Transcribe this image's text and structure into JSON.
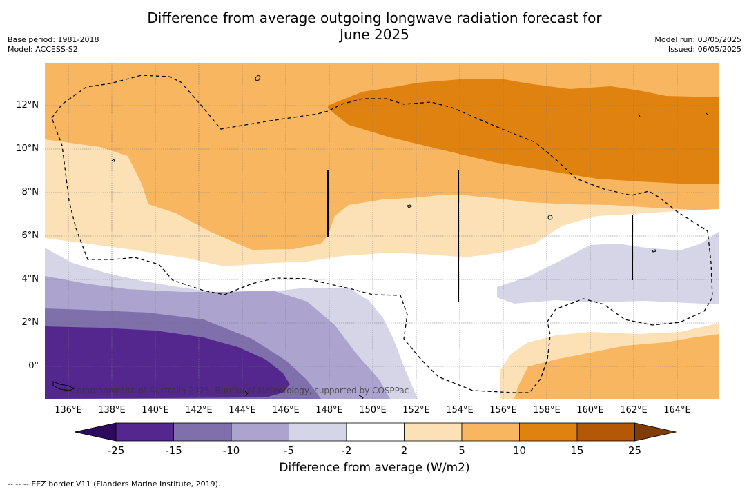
{
  "title_line1": "Difference from average outgoing longwave radiation forecast for",
  "title_line2": "June 2025",
  "base_period": "Base period: 1981-2018",
  "model": "Model: ACCESS-S2",
  "model_run": "Model run: 03/05/2025",
  "issued": "Issued: 06/05/2025",
  "copyright": "© Commonwealth of Australia 2025, Bureau of Meteorology, supported by COSPPac",
  "lat_labels": [
    "12°N",
    "10°N",
    "8°N",
    "6°N",
    "4°N",
    "2°N",
    "0°"
  ],
  "lon_labels": [
    "136°E",
    "138°E",
    "140°E",
    "142°E",
    "144°E",
    "146°E",
    "148°E",
    "150°E",
    "152°E",
    "154°E",
    "156°E",
    "158°E",
    "160°E",
    "162°E",
    "164°E"
  ],
  "colorbar": {
    "ticks": [
      "-25",
      "-15",
      "-10",
      "-5",
      "-2",
      "2",
      "5",
      "10",
      "15",
      "25"
    ],
    "colors": [
      "#2d0a5e",
      "#54278f",
      "#7f6fab",
      "#aca4cf",
      "#d6d5e8",
      "#ffffff",
      "#fde1b6",
      "#f9b660",
      "#e0820f",
      "#b35806",
      "#7f3b08"
    ],
    "label": "Difference from average (W/m2)"
  },
  "footer": "--  --  -- EEZ border V11 (Flanders Marine Institute, 2019)."
}
